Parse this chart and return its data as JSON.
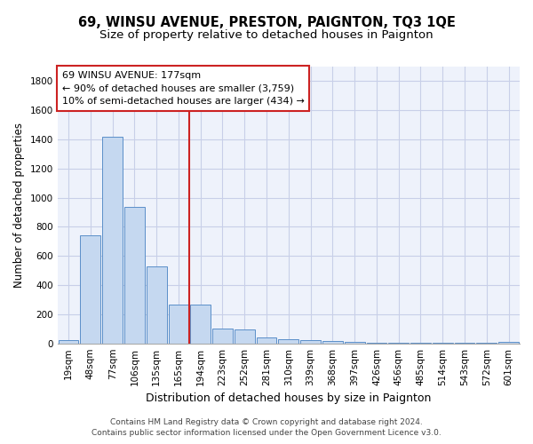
{
  "title": "69, WINSU AVENUE, PRESTON, PAIGNTON, TQ3 1QE",
  "subtitle": "Size of property relative to detached houses in Paignton",
  "xlabel": "Distribution of detached houses by size in Paignton",
  "ylabel": "Number of detached properties",
  "categories": [
    "19sqm",
    "48sqm",
    "77sqm",
    "106sqm",
    "135sqm",
    "165sqm",
    "194sqm",
    "223sqm",
    "252sqm",
    "281sqm",
    "310sqm",
    "339sqm",
    "368sqm",
    "397sqm",
    "426sqm",
    "456sqm",
    "485sqm",
    "514sqm",
    "543sqm",
    "572sqm",
    "601sqm"
  ],
  "values": [
    22,
    743,
    1421,
    938,
    530,
    265,
    265,
    104,
    93,
    40,
    28,
    25,
    15,
    13,
    6,
    6,
    4,
    4,
    4,
    4,
    13
  ],
  "bar_color": "#c5d8f0",
  "bar_edge_color": "#5b8fc9",
  "annotation_box_text": "69 WINSU AVENUE: 177sqm\n← 90% of detached houses are smaller (3,759)\n10% of semi-detached houses are larger (434) →",
  "vline_x": 5.5,
  "ylim": [
    0,
    1900
  ],
  "yticks": [
    0,
    200,
    400,
    600,
    800,
    1000,
    1200,
    1400,
    1600,
    1800
  ],
  "grid_color": "#c8cfe8",
  "bg_color": "#eef2fb",
  "footer_text": "Contains HM Land Registry data © Crown copyright and database right 2024.\nContains public sector information licensed under the Open Government Licence v3.0.",
  "title_fontsize": 10.5,
  "subtitle_fontsize": 9.5,
  "ylabel_fontsize": 8.5,
  "xlabel_fontsize": 9,
  "tick_fontsize": 7.5,
  "footer_fontsize": 6.5,
  "ann_fontsize": 8
}
